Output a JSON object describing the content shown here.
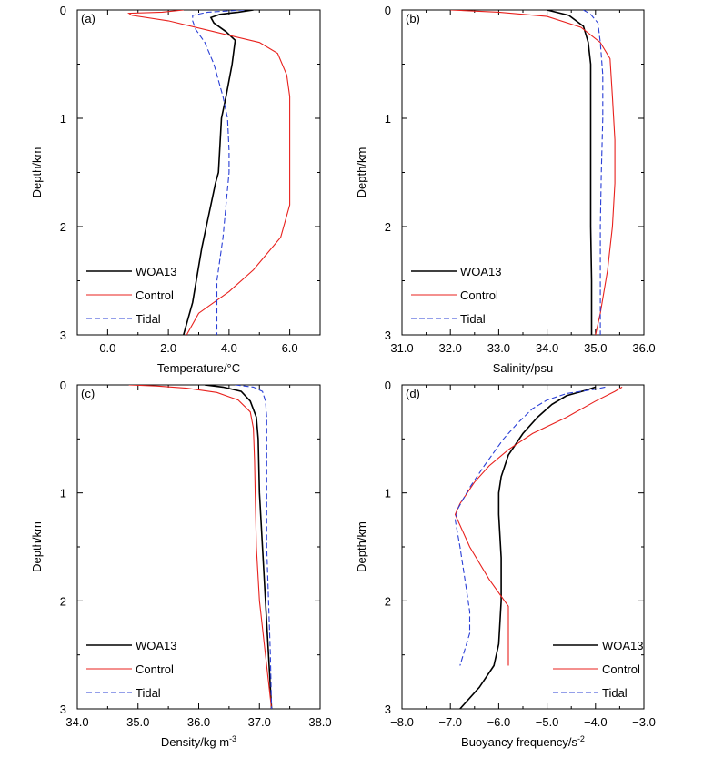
{
  "colors": {
    "WOA13": "#000000",
    "Control": "#e8211d",
    "Tidal": "#2a3fd6"
  },
  "chart_data": [
    {
      "type": "line",
      "panel_label": "(a)",
      "xlabel": "Temperature/°C",
      "ylabel": "Depth/km",
      "xlim": [
        -1,
        7
      ],
      "ylim": [
        3,
        0
      ],
      "xticks": [
        "0.0",
        "2.0",
        "4.0",
        "6.0"
      ],
      "xtick_values": [
        0,
        2,
        4,
        6
      ],
      "yticks": [
        "0",
        "1",
        "2",
        "3"
      ],
      "legend_position": "bottom-left",
      "series": [
        {
          "name": "WOA13",
          "style": "solid",
          "points": [
            [
              4.8,
              0
            ],
            [
              4.3,
              0.02
            ],
            [
              3.7,
              0.04
            ],
            [
              3.4,
              0.07
            ],
            [
              3.5,
              0.12
            ],
            [
              3.9,
              0.2
            ],
            [
              4.2,
              0.28
            ],
            [
              4.1,
              0.5
            ],
            [
              3.9,
              0.8
            ],
            [
              3.75,
              1.0
            ],
            [
              3.65,
              1.5
            ],
            [
              3.55,
              1.6
            ],
            [
              3.1,
              2.2
            ],
            [
              2.8,
              2.7
            ],
            [
              2.5,
              3.0
            ]
          ]
        },
        {
          "name": "Control",
          "style": "solid",
          "points": [
            [
              2.5,
              0
            ],
            [
              1.8,
              0.02
            ],
            [
              0.7,
              0.03
            ],
            [
              0.8,
              0.05
            ],
            [
              2.0,
              0.1
            ],
            [
              3.5,
              0.2
            ],
            [
              5.0,
              0.3
            ],
            [
              5.6,
              0.4
            ],
            [
              5.9,
              0.6
            ],
            [
              6.0,
              0.8
            ],
            [
              6.0,
              1.5
            ],
            [
              6.0,
              1.8
            ],
            [
              5.7,
              2.1
            ],
            [
              4.8,
              2.4
            ],
            [
              4.0,
              2.6
            ],
            [
              3.0,
              2.8
            ],
            [
              2.6,
              3.0
            ]
          ]
        },
        {
          "name": "Tidal",
          "style": "dashed",
          "points": [
            [
              4.5,
              0
            ],
            [
              3.3,
              0.02
            ],
            [
              2.8,
              0.05
            ],
            [
              2.8,
              0.1
            ],
            [
              2.9,
              0.18
            ],
            [
              3.2,
              0.3
            ],
            [
              3.5,
              0.5
            ],
            [
              3.8,
              0.8
            ],
            [
              3.95,
              1.0
            ],
            [
              4.0,
              1.3
            ],
            [
              4.0,
              1.5
            ],
            [
              3.9,
              1.8
            ],
            [
              3.8,
              2.1
            ],
            [
              3.6,
              2.5
            ],
            [
              3.6,
              3.0
            ]
          ]
        }
      ]
    },
    {
      "type": "line",
      "panel_label": "(b)",
      "xlabel": "Salinity/psu",
      "ylabel": "Depth/km",
      "xlim": [
        31,
        36
      ],
      "ylim": [
        3,
        0
      ],
      "xticks": [
        "31.0",
        "32.0",
        "33.0",
        "34.0",
        "35.0",
        "36.0"
      ],
      "xtick_values": [
        31,
        32,
        33,
        34,
        35,
        36
      ],
      "yticks": [
        "0",
        "1",
        "2",
        "3"
      ],
      "legend_position": "bottom-left",
      "series": [
        {
          "name": "WOA13",
          "style": "solid",
          "points": [
            [
              34.0,
              0
            ],
            [
              34.45,
              0.05
            ],
            [
              34.75,
              0.15
            ],
            [
              34.85,
              0.3
            ],
            [
              34.9,
              0.5
            ],
            [
              34.9,
              1.0
            ],
            [
              34.9,
              1.5
            ],
            [
              34.9,
              2.0
            ],
            [
              34.92,
              2.5
            ],
            [
              34.92,
              3.0
            ]
          ]
        },
        {
          "name": "Control",
          "style": "solid",
          "points": [
            [
              32.0,
              0
            ],
            [
              33.0,
              0.02
            ],
            [
              34.0,
              0.06
            ],
            [
              34.7,
              0.16
            ],
            [
              35.1,
              0.3
            ],
            [
              35.3,
              0.45
            ],
            [
              35.35,
              0.8
            ],
            [
              35.4,
              1.2
            ],
            [
              35.4,
              1.6
            ],
            [
              35.35,
              2.0
            ],
            [
              35.25,
              2.4
            ],
            [
              35.1,
              2.8
            ],
            [
              35.0,
              3.0
            ]
          ]
        },
        {
          "name": "Tidal",
          "style": "dashed",
          "points": [
            [
              34.75,
              0
            ],
            [
              34.9,
              0.04
            ],
            [
              35.05,
              0.12
            ],
            [
              35.1,
              0.3
            ],
            [
              35.15,
              0.6
            ],
            [
              35.15,
              1.0
            ],
            [
              35.12,
              1.5
            ],
            [
              35.1,
              2.0
            ],
            [
              35.1,
              2.5
            ],
            [
              35.1,
              3.0
            ]
          ]
        }
      ]
    },
    {
      "type": "line",
      "panel_label": "(c)",
      "xlabel": "Density/kg m",
      "xlabel_sup": "-3",
      "ylabel": "Depth/km",
      "xlim": [
        34,
        38
      ],
      "ylim": [
        3,
        0
      ],
      "xticks": [
        "34.0",
        "35.0",
        "36.0",
        "37.0",
        "38.0"
      ],
      "xtick_values": [
        34,
        35,
        36,
        37,
        38
      ],
      "yticks": [
        "0",
        "1",
        "2",
        "3"
      ],
      "legend_position": "bottom-left",
      "series": [
        {
          "name": "WOA13",
          "style": "solid",
          "points": [
            [
              36.1,
              0
            ],
            [
              36.4,
              0.02
            ],
            [
              36.7,
              0.06
            ],
            [
              36.85,
              0.15
            ],
            [
              36.95,
              0.3
            ],
            [
              36.98,
              0.5
            ],
            [
              37.0,
              1.0
            ],
            [
              37.05,
              1.5
            ],
            [
              37.1,
              2.0
            ],
            [
              37.15,
              2.5
            ],
            [
              37.2,
              3.0
            ]
          ]
        },
        {
          "name": "Control",
          "style": "solid",
          "points": [
            [
              34.85,
              0
            ],
            [
              35.3,
              0.01
            ],
            [
              35.8,
              0.03
            ],
            [
              36.3,
              0.07
            ],
            [
              36.65,
              0.14
            ],
            [
              36.85,
              0.25
            ],
            [
              36.9,
              0.4
            ],
            [
              36.92,
              0.7
            ],
            [
              36.93,
              1.0
            ],
            [
              36.95,
              1.5
            ],
            [
              37.0,
              2.0
            ],
            [
              37.1,
              2.5
            ],
            [
              37.2,
              3.0
            ]
          ]
        },
        {
          "name": "Tidal",
          "style": "dashed",
          "points": [
            [
              36.6,
              0
            ],
            [
              36.9,
              0.02
            ],
            [
              37.05,
              0.06
            ],
            [
              37.1,
              0.15
            ],
            [
              37.12,
              0.3
            ],
            [
              37.12,
              1.0
            ],
            [
              37.12,
              1.5
            ],
            [
              37.15,
              2.0
            ],
            [
              37.18,
              2.5
            ],
            [
              37.2,
              3.0
            ]
          ]
        }
      ]
    },
    {
      "type": "line",
      "panel_label": "(d)",
      "xlabel": "Buoyancy frequency/s",
      "xlabel_sup": "-2",
      "ylabel": "Depth/km",
      "xlim": [
        -8,
        -3
      ],
      "ylim": [
        3,
        0
      ],
      "xticks": [
        "−8.0",
        "−7.0",
        "−6.0",
        "−5.0",
        "−4.0",
        "−3.0"
      ],
      "xtick_values": [
        -8,
        -7,
        -6,
        -5,
        -4,
        -3
      ],
      "yticks": [
        "0",
        "1",
        "2",
        "3"
      ],
      "legend_position": "bottom-right",
      "series": [
        {
          "name": "WOA13",
          "style": "solid",
          "points": [
            [
              -4.0,
              0.02
            ],
            [
              -4.2,
              0.05
            ],
            [
              -4.6,
              0.1
            ],
            [
              -4.9,
              0.18
            ],
            [
              -5.2,
              0.3
            ],
            [
              -5.5,
              0.45
            ],
            [
              -5.8,
              0.65
            ],
            [
              -5.95,
              0.85
            ],
            [
              -6.0,
              1.0
            ],
            [
              -6.0,
              1.2
            ],
            [
              -5.95,
              1.6
            ],
            [
              -5.95,
              2.0
            ],
            [
              -6.0,
              2.4
            ],
            [
              -6.1,
              2.6
            ],
            [
              -6.4,
              2.8
            ],
            [
              -6.8,
              3.0
            ]
          ]
        },
        {
          "name": "Control",
          "style": "solid",
          "points": [
            [
              -3.45,
              0.02
            ],
            [
              -3.6,
              0.06
            ],
            [
              -4.0,
              0.15
            ],
            [
              -4.6,
              0.3
            ],
            [
              -5.3,
              0.45
            ],
            [
              -5.8,
              0.6
            ],
            [
              -6.2,
              0.75
            ],
            [
              -6.5,
              0.9
            ],
            [
              -6.8,
              1.1
            ],
            [
              -6.9,
              1.2
            ],
            [
              -6.6,
              1.5
            ],
            [
              -6.2,
              1.8
            ],
            [
              -5.8,
              2.05
            ],
            [
              -5.8,
              2.6
            ]
          ]
        },
        {
          "name": "Tidal",
          "style": "dashed",
          "points": [
            [
              -3.8,
              0.02
            ],
            [
              -4.0,
              0.04
            ],
            [
              -4.6,
              0.08
            ],
            [
              -5.0,
              0.14
            ],
            [
              -5.3,
              0.22
            ],
            [
              -5.6,
              0.35
            ],
            [
              -5.9,
              0.5
            ],
            [
              -6.3,
              0.75
            ],
            [
              -6.6,
              0.95
            ],
            [
              -6.85,
              1.15
            ],
            [
              -6.9,
              1.25
            ],
            [
              -6.8,
              1.5
            ],
            [
              -6.7,
              1.8
            ],
            [
              -6.6,
              2.1
            ],
            [
              -6.6,
              2.3
            ],
            [
              -6.8,
              2.6
            ]
          ]
        }
      ]
    }
  ]
}
